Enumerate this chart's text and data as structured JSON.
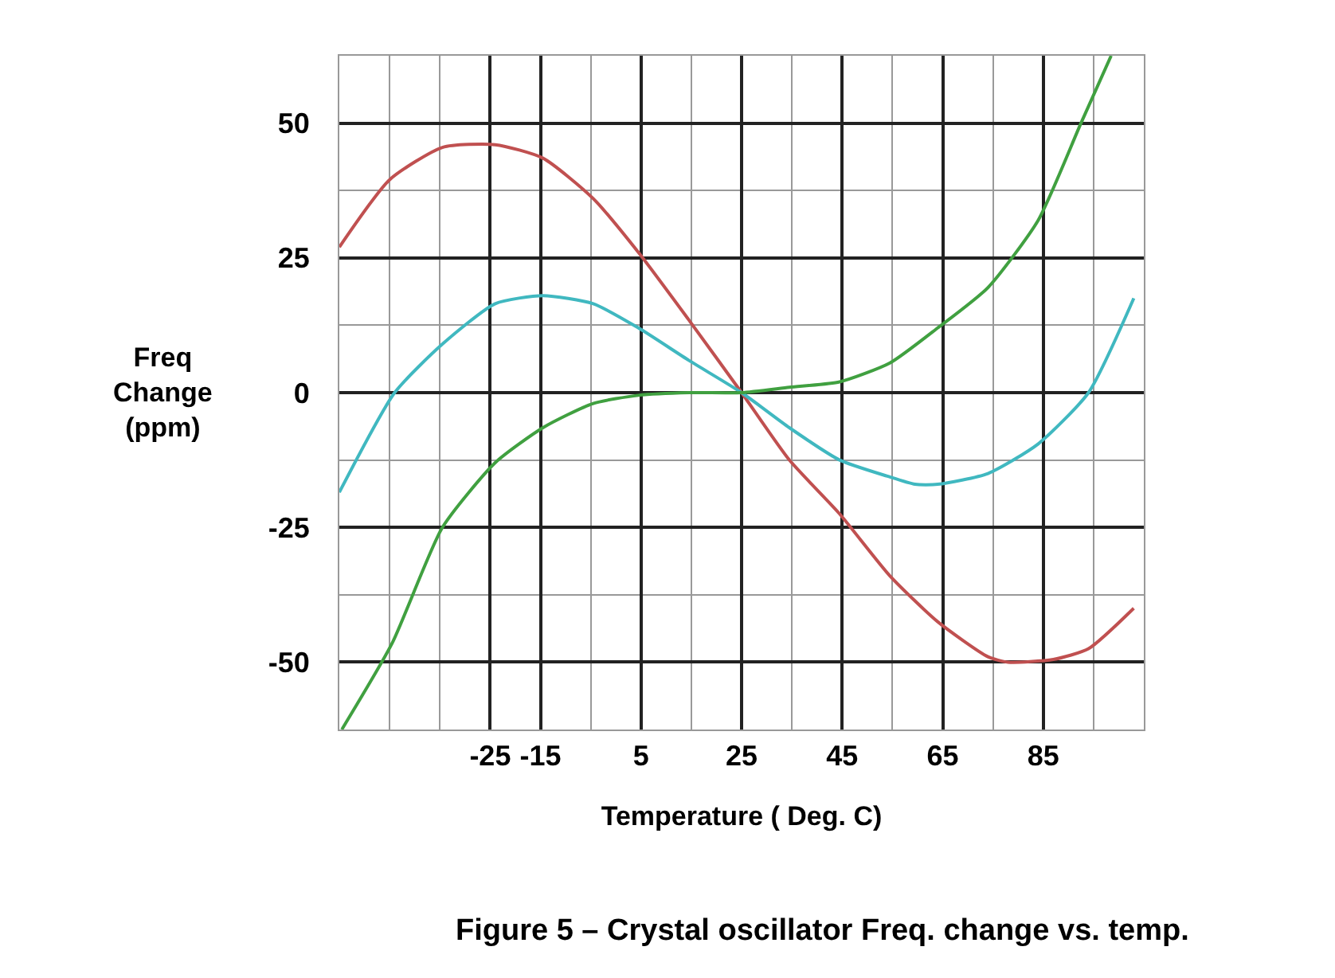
{
  "chart_data": {
    "type": "line",
    "xlabel": "Temperature ( Deg. C)",
    "ylabel": "Freq\nChange\n(ppm)",
    "annotations": [
      "Figure 5 – Crystal oscillator Freq. change vs. temp."
    ],
    "xlim": [
      -55,
      105
    ],
    "ylim": [
      -62.5,
      62.5
    ],
    "xticks": [
      -25,
      -15,
      5,
      25,
      45,
      65,
      85
    ],
    "yticks": [
      -50,
      -25,
      0,
      25,
      50
    ],
    "grid": true,
    "series": [
      {
        "color": "#c05050",
        "x": [
          -55,
          -45,
          -34.5,
          -24,
          -14.5,
          -4.5,
          4.5,
          14.5,
          25,
          34.5,
          44.5,
          54.5,
          64,
          74,
          78,
          87,
          94,
          103
        ],
        "values": [
          27,
          39.5,
          45.5,
          46,
          43.5,
          36,
          26,
          13.5,
          0,
          -12.5,
          -22.5,
          -34,
          -42.5,
          -49,
          -50,
          -49.5,
          -47.5,
          -40
        ]
      },
      {
        "color": "#40b8c0",
        "x": [
          -55,
          -44,
          -34.5,
          -24,
          -14.5,
          -4.5,
          4.5,
          14.5,
          25,
          34.5,
          44.5,
          54,
          59.5,
          64,
          74,
          84,
          94,
          103
        ],
        "values": [
          -18.5,
          0,
          9,
          16.5,
          18,
          16.5,
          12,
          6,
          0,
          -6.5,
          -12.5,
          -15.5,
          -17,
          -17,
          -15,
          -9.5,
          0,
          17.5
        ]
      },
      {
        "color": "#40a040",
        "x": [
          -54.5,
          -44.5,
          -34.5,
          -24,
          -14.5,
          -4.5,
          4.5,
          14.5,
          25,
          34.5,
          44.5,
          54.5,
          64,
          74,
          84,
          92.5,
          98.5
        ],
        "values": [
          -62.5,
          -46.5,
          -25,
          -13,
          -6.5,
          -2,
          -0.5,
          0,
          0,
          1,
          2,
          5.5,
          12,
          19.5,
          32,
          50,
          62.5
        ]
      }
    ]
  }
}
